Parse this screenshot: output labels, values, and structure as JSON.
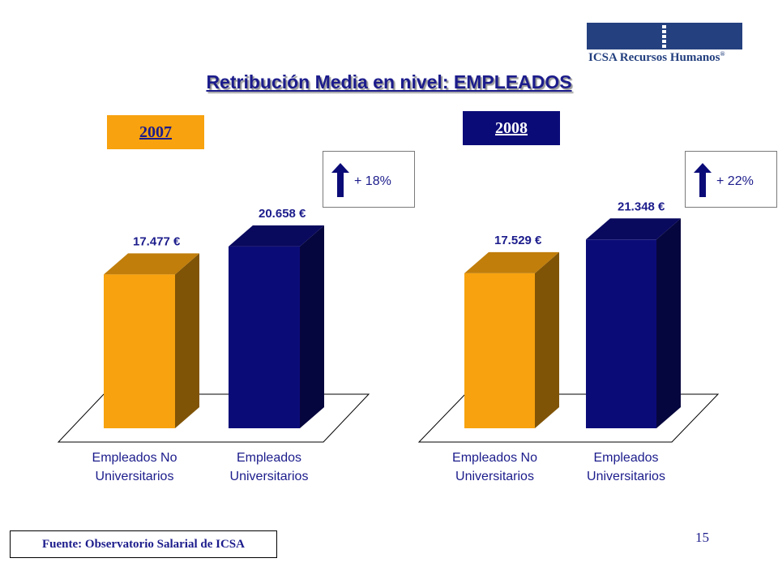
{
  "logo": {
    "text": "ICSA Recursos Humanos",
    "reg": "®"
  },
  "title": "Retribución Media en nivel: EMPLEADOS",
  "colors": {
    "orange": "#f7a20e",
    "navy": "#0b0b78",
    "text": "#1c1c8c"
  },
  "increases": [
    {
      "icon": "up-arrow-icon",
      "label": "+ 18%"
    },
    {
      "icon": "up-arrow-icon",
      "label": "+ 22%"
    }
  ],
  "chart_data": [
    {
      "type": "bar",
      "title": "2007",
      "categories": [
        "Empleados No Universitarios",
        "Empleados Universitarios"
      ],
      "category_lines": [
        [
          "Empleados No",
          "Universitarios"
        ],
        [
          "Empleados",
          "Universitarios"
        ]
      ],
      "values": [
        17477,
        20658
      ],
      "value_labels": [
        "17.477 €",
        "20.658 €"
      ],
      "bar_colors": [
        "#f7a20e",
        "#0b0b78"
      ],
      "ylim": [
        0,
        25000
      ]
    },
    {
      "type": "bar",
      "title": "2008",
      "categories": [
        "Empleados No Universitarios",
        "Empleados Universitarios"
      ],
      "category_lines": [
        [
          "Empleados No",
          "Universitarios"
        ],
        [
          "Empleados",
          "Universitarios"
        ]
      ],
      "values": [
        17529,
        21348
      ],
      "value_labels": [
        "17.529 €",
        "21.348 €"
      ],
      "bar_colors": [
        "#f7a20e",
        "#0b0b78"
      ],
      "ylim": [
        0,
        25000
      ]
    }
  ],
  "source": "Fuente: Observatorio Salarial de ICSA",
  "page_number": "15"
}
